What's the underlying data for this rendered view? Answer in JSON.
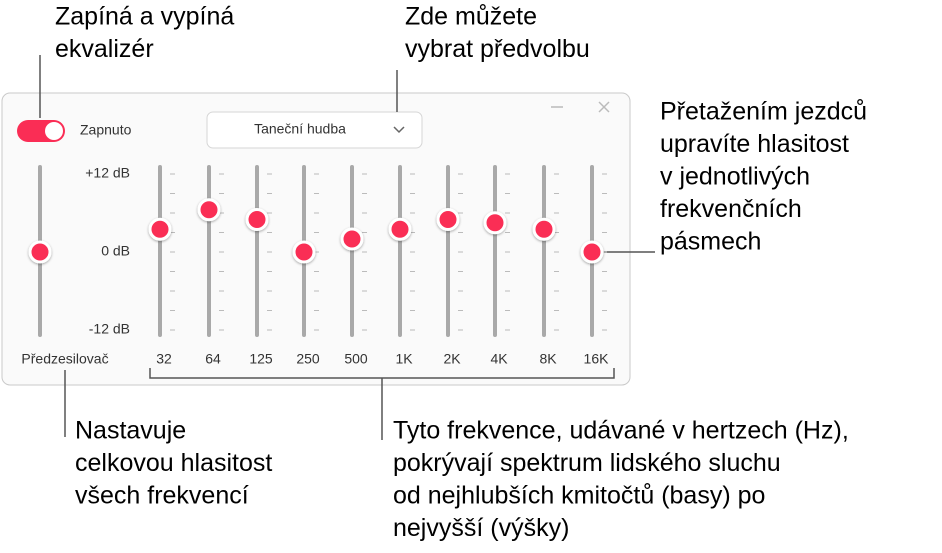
{
  "callouts": [
    {
      "lines": [
        "Zapíná a vypíná",
        "ekvalizér"
      ]
    },
    {
      "lines": [
        "Zde můžete",
        "vybrat předvolbu"
      ]
    },
    {
      "lines": [
        "Přetažením jezdců",
        "upravíte hlasitost",
        "v jednotlivých",
        "frekvenčních",
        "pásmech"
      ]
    },
    {
      "lines": [
        "Nastavuje",
        "celkovou hlasitost",
        "všech frekvencí"
      ]
    },
    {
      "lines": [
        "Tyto frekvence, udávané v hertzech (Hz),",
        "pokrývají spektrum lidského sluchu",
        "od nejhlubších kmitočtů (basy) po",
        "nejvyšší (výšky)"
      ]
    }
  ],
  "eq": {
    "toggle_label": "Zapnuto",
    "preset": "Taneční hudba",
    "scale": [
      {
        "value": 12,
        "label": "+12 dB"
      },
      {
        "value": 0,
        "label": "0 dB"
      },
      {
        "value": -12,
        "label": "-12 dB"
      }
    ],
    "preamp": {
      "label": "Předzesilovač",
      "value": 0
    },
    "bands": [
      {
        "label": "32",
        "value": 3.5
      },
      {
        "label": "64",
        "value": 6.5
      },
      {
        "label": "125",
        "value": 5
      },
      {
        "label": "250",
        "value": 0
      },
      {
        "label": "500",
        "value": 2
      },
      {
        "label": "1K",
        "value": 3.5
      },
      {
        "label": "2K",
        "value": 5
      },
      {
        "label": "4K",
        "value": 4.5
      },
      {
        "label": "8K",
        "value": 3.5
      },
      {
        "label": "16K",
        "value": 0
      }
    ]
  }
}
